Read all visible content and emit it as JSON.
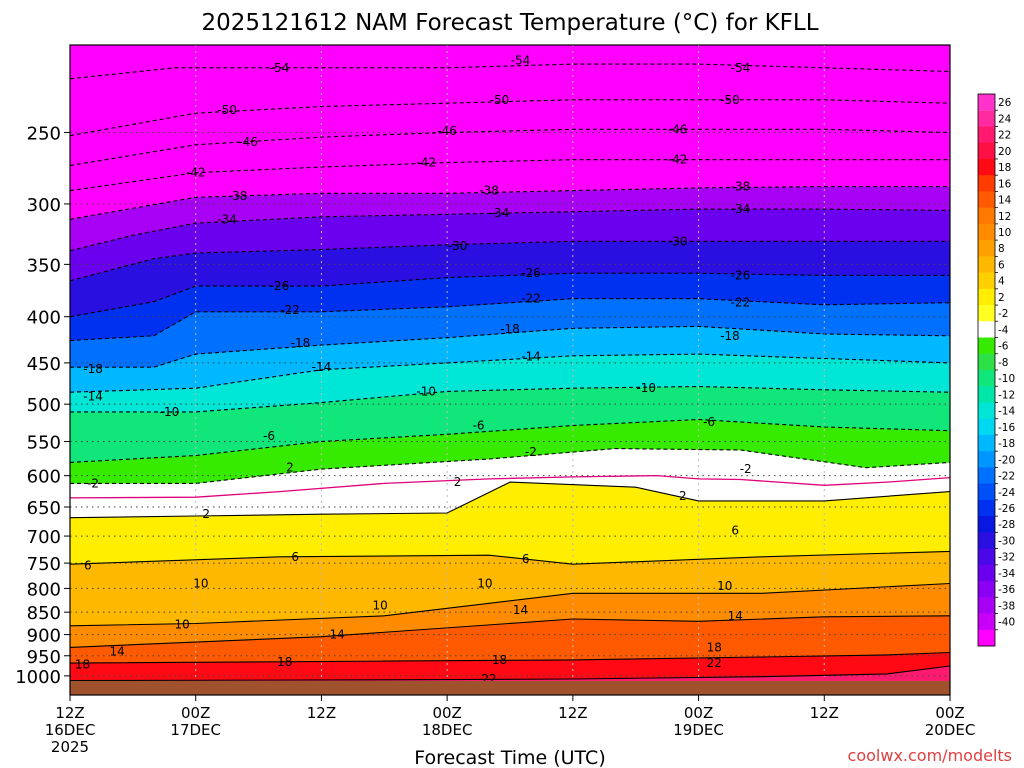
{
  "chart_data": {
    "type": "heatmap",
    "title": "2025121612 NAM Forecast Temperature (°C) for KFLL",
    "xlabel": "Forecast Time (UTC)",
    "ylabel": "",
    "credit": "coolwx.com/modelts",
    "y_axis": {
      "quantity": "pressure (hPa)",
      "direction": "inverted",
      "range": [
        1050,
        200
      ],
      "ticks": [
        250,
        300,
        350,
        400,
        450,
        500,
        550,
        600,
        650,
        700,
        750,
        800,
        850,
        900,
        950,
        1000
      ]
    },
    "x_axis": {
      "range_hours": [
        0,
        84
      ],
      "ticks": [
        {
          "hour": 0,
          "lines": [
            "12Z",
            "16DEC",
            "2025"
          ]
        },
        {
          "hour": 12,
          "lines": [
            "00Z",
            "17DEC"
          ]
        },
        {
          "hour": 24,
          "lines": [
            "12Z"
          ]
        },
        {
          "hour": 36,
          "lines": [
            "00Z",
            "18DEC"
          ]
        },
        {
          "hour": 48,
          "lines": [
            "12Z"
          ]
        },
        {
          "hour": 60,
          "lines": [
            "00Z",
            "19DEC"
          ]
        },
        {
          "hour": 72,
          "lines": [
            "12Z"
          ]
        },
        {
          "hour": 84,
          "lines": [
            "00Z",
            "20DEC"
          ]
        }
      ]
    },
    "colorbar": {
      "labels": [
        26,
        24,
        22,
        20,
        18,
        16,
        14,
        12,
        10,
        8,
        6,
        4,
        2,
        -2,
        -4,
        -6,
        -8,
        -10,
        -12,
        -14,
        -16,
        -18,
        -20,
        -22,
        -24,
        -26,
        -28,
        -30,
        -32,
        -34,
        -36,
        -38,
        -40
      ],
      "colors": [
        "#ff2aa0",
        "#ff1a70",
        "#ff1044",
        "#ff0a14",
        "#ff3c00",
        "#ff5a00",
        "#ff7800",
        "#ff8c00",
        "#ffa000",
        "#ffb800",
        "#ffd000",
        "#ffee00",
        "#ffff22",
        "#ffffff",
        "#36ea00",
        "#2ee048",
        "#10e67a",
        "#00e6a8",
        "#00e6d6",
        "#00d8f2",
        "#00b8ff",
        "#0096ff",
        "#0070ff",
        "#0050f8",
        "#0030f0",
        "#0818e0",
        "#2a10e0",
        "#4a08e8",
        "#6a00ee",
        "#8a00f2",
        "#a800f4",
        "#c800f8",
        "#ff00ff"
      ],
      "above_color": "#ff33cc"
    },
    "isotherm_levels": [
      22,
      18,
      14,
      10,
      6,
      2,
      -2,
      -6,
      -10,
      -14,
      -18,
      -22,
      -26,
      -30,
      -34,
      -38,
      -42,
      -46,
      -50,
      -54
    ],
    "isotherms": [
      {
        "level": 22,
        "points": [
          [
            0,
            1012
          ],
          [
            30,
            1010
          ],
          [
            48,
            1008
          ],
          [
            66,
            1002
          ],
          [
            78,
            995
          ],
          [
            84,
            975
          ]
        ]
      },
      {
        "level": 18,
        "points": [
          [
            0,
            968
          ],
          [
            30,
            963
          ],
          [
            48,
            960
          ],
          [
            66,
            953
          ],
          [
            78,
            948
          ],
          [
            84,
            942
          ]
        ]
      },
      {
        "level": 14,
        "points": [
          [
            0,
            930
          ],
          [
            24,
            905
          ],
          [
            48,
            865
          ],
          [
            60,
            870
          ],
          [
            72,
            860
          ],
          [
            84,
            858
          ]
        ]
      },
      {
        "level": 10,
        "points": [
          [
            0,
            880
          ],
          [
            12,
            875
          ],
          [
            30,
            858
          ],
          [
            48,
            810
          ],
          [
            66,
            810
          ],
          [
            84,
            790
          ]
        ]
      },
      {
        "level": 6,
        "points": [
          [
            0,
            752
          ],
          [
            20,
            738
          ],
          [
            40,
            735
          ],
          [
            48,
            752
          ],
          [
            66,
            738
          ],
          [
            84,
            728
          ]
        ]
      },
      {
        "level": 2,
        "points": [
          [
            0,
            668
          ],
          [
            12,
            665
          ],
          [
            24,
            662
          ],
          [
            36,
            660
          ],
          [
            42,
            610
          ],
          [
            54,
            618
          ],
          [
            60,
            640
          ],
          [
            72,
            640
          ],
          [
            84,
            625
          ]
        ]
      },
      {
        "level": -2,
        "points": [
          [
            0,
            612
          ],
          [
            12,
            612
          ],
          [
            24,
            590
          ],
          [
            40,
            575
          ],
          [
            52,
            560
          ],
          [
            64,
            562
          ],
          [
            76,
            588
          ],
          [
            84,
            580
          ]
        ]
      },
      {
        "level": -6,
        "points": [
          [
            0,
            580
          ],
          [
            12,
            570
          ],
          [
            24,
            550
          ],
          [
            36,
            540
          ],
          [
            48,
            528
          ],
          [
            60,
            520
          ],
          [
            72,
            530
          ],
          [
            84,
            535
          ]
        ]
      },
      {
        "level": -10,
        "points": [
          [
            0,
            510
          ],
          [
            12,
            510
          ],
          [
            24,
            498
          ],
          [
            36,
            484
          ],
          [
            48,
            480
          ],
          [
            60,
            478
          ],
          [
            72,
            482
          ],
          [
            84,
            485
          ]
        ]
      },
      {
        "level": -14,
        "points": [
          [
            0,
            485
          ],
          [
            12,
            480
          ],
          [
            24,
            458
          ],
          [
            36,
            450
          ],
          [
            48,
            442
          ],
          [
            60,
            440
          ],
          [
            72,
            445
          ],
          [
            84,
            450
          ]
        ]
      },
      {
        "level": -18,
        "points": [
          [
            0,
            455
          ],
          [
            8,
            455
          ],
          [
            12,
            440
          ],
          [
            24,
            430
          ],
          [
            36,
            422
          ],
          [
            48,
            412
          ],
          [
            60,
            410
          ],
          [
            72,
            418
          ],
          [
            84,
            420
          ]
        ]
      },
      {
        "level": -22,
        "points": [
          [
            0,
            425
          ],
          [
            8,
            420
          ],
          [
            12,
            395
          ],
          [
            24,
            395
          ],
          [
            36,
            390
          ],
          [
            48,
            382
          ],
          [
            60,
            382
          ],
          [
            72,
            388
          ],
          [
            84,
            386
          ]
        ]
      },
      {
        "level": -26,
        "points": [
          [
            0,
            400
          ],
          [
            8,
            385
          ],
          [
            12,
            370
          ],
          [
            24,
            370
          ],
          [
            36,
            362
          ],
          [
            48,
            358
          ],
          [
            60,
            358
          ],
          [
            72,
            360
          ],
          [
            84,
            360
          ]
        ]
      },
      {
        "level": -30,
        "points": [
          [
            0,
            365
          ],
          [
            8,
            345
          ],
          [
            12,
            340
          ],
          [
            24,
            337
          ],
          [
            36,
            333
          ],
          [
            48,
            330
          ],
          [
            60,
            330
          ],
          [
            72,
            330
          ],
          [
            84,
            330
          ]
        ]
      },
      {
        "level": -34,
        "points": [
          [
            0,
            338
          ],
          [
            6,
            325
          ],
          [
            12,
            315
          ],
          [
            24,
            310
          ],
          [
            36,
            308
          ],
          [
            48,
            306
          ],
          [
            60,
            304
          ],
          [
            72,
            304
          ],
          [
            84,
            305
          ]
        ]
      },
      {
        "level": -38,
        "points": [
          [
            0,
            312
          ],
          [
            12,
            295
          ],
          [
            24,
            292
          ],
          [
            36,
            292
          ],
          [
            48,
            290
          ],
          [
            60,
            288
          ],
          [
            72,
            287
          ],
          [
            84,
            287
          ]
        ]
      },
      {
        "level": -42,
        "points": [
          [
            0,
            290
          ],
          [
            12,
            277
          ],
          [
            24,
            273
          ],
          [
            36,
            270
          ],
          [
            48,
            268
          ],
          [
            60,
            268
          ],
          [
            72,
            268
          ],
          [
            84,
            268
          ]
        ]
      },
      {
        "level": -46,
        "points": [
          [
            0,
            272
          ],
          [
            12,
            258
          ],
          [
            24,
            253
          ],
          [
            36,
            250
          ],
          [
            48,
            248
          ],
          [
            60,
            248
          ],
          [
            72,
            248
          ],
          [
            84,
            250
          ]
        ]
      },
      {
        "level": -50,
        "points": [
          [
            0,
            252
          ],
          [
            12,
            238
          ],
          [
            24,
            234
          ],
          [
            36,
            232
          ],
          [
            48,
            230
          ],
          [
            60,
            230
          ],
          [
            72,
            230
          ],
          [
            84,
            232
          ]
        ]
      },
      {
        "level": -54,
        "points": [
          [
            0,
            218
          ],
          [
            10,
            212
          ],
          [
            24,
            212
          ],
          [
            36,
            212
          ],
          [
            48,
            210
          ],
          [
            60,
            210
          ],
          [
            72,
            212
          ],
          [
            84,
            214
          ]
        ]
      }
    ],
    "zero_isotherm": {
      "color": "#e0007a",
      "points": [
        [
          0,
          635
        ],
        [
          12,
          634
        ],
        [
          20,
          625
        ],
        [
          30,
          612
        ],
        [
          40,
          605
        ],
        [
          48,
          602
        ],
        [
          56,
          600
        ],
        [
          60,
          605
        ],
        [
          64,
          606
        ],
        [
          72,
          615
        ],
        [
          78,
          610
        ],
        [
          84,
          603
        ]
      ]
    },
    "contour_labels": [
      {
        "text": "-54",
        "x": 20,
        "p": 212
      },
      {
        "text": "-54",
        "x": 43,
        "p": 208
      },
      {
        "text": "-54",
        "x": 64,
        "p": 212
      },
      {
        "text": "-50",
        "x": 15,
        "p": 236
      },
      {
        "text": "-50",
        "x": 41,
        "p": 230
      },
      {
        "text": "-50",
        "x": 63,
        "p": 230
      },
      {
        "text": "-46",
        "x": 17,
        "p": 256
      },
      {
        "text": "-46",
        "x": 36,
        "p": 249
      },
      {
        "text": "-46",
        "x": 58,
        "p": 248
      },
      {
        "text": "-42",
        "x": 12,
        "p": 277
      },
      {
        "text": "-42",
        "x": 34,
        "p": 270
      },
      {
        "text": "-42",
        "x": 58,
        "p": 268
      },
      {
        "text": "-38",
        "x": 16,
        "p": 294
      },
      {
        "text": "-38",
        "x": 40,
        "p": 290
      },
      {
        "text": "-38",
        "x": 64,
        "p": 287
      },
      {
        "text": "-34",
        "x": 15,
        "p": 312
      },
      {
        "text": "-34",
        "x": 41,
        "p": 307
      },
      {
        "text": "-34",
        "x": 64,
        "p": 304
      },
      {
        "text": "-30",
        "x": 37,
        "p": 334
      },
      {
        "text": "-30",
        "x": 58,
        "p": 330
      },
      {
        "text": "-26",
        "x": 20,
        "p": 370
      },
      {
        "text": "-26",
        "x": 44,
        "p": 358
      },
      {
        "text": "-26",
        "x": 64,
        "p": 360
      },
      {
        "text": "-22",
        "x": 21,
        "p": 393
      },
      {
        "text": "-22",
        "x": 44,
        "p": 382
      },
      {
        "text": "-22",
        "x": 64,
        "p": 386
      },
      {
        "text": "-18",
        "x": 2.2,
        "p": 457
      },
      {
        "text": "-18",
        "x": 22,
        "p": 428
      },
      {
        "text": "-18",
        "x": 42,
        "p": 413
      },
      {
        "text": "-18",
        "x": 63,
        "p": 420
      },
      {
        "text": "-14",
        "x": 2.2,
        "p": 490
      },
      {
        "text": "-14",
        "x": 24,
        "p": 455
      },
      {
        "text": "-14",
        "x": 44,
        "p": 443
      },
      {
        "text": "-10",
        "x": 9.5,
        "p": 510
      },
      {
        "text": "-10",
        "x": 34,
        "p": 484
      },
      {
        "text": "-10",
        "x": 55,
        "p": 480
      },
      {
        "text": "-6",
        "x": 19,
        "p": 542
      },
      {
        "text": "-6",
        "x": 39,
        "p": 528
      },
      {
        "text": "-6",
        "x": 61,
        "p": 523
      },
      {
        "text": "-2",
        "x": 2.2,
        "p": 612
      },
      {
        "text": "-2",
        "x": 44,
        "p": 565
      },
      {
        "text": "-2",
        "x": 64.5,
        "p": 590
      },
      {
        "text": "2",
        "x": 21,
        "p": 588
      },
      {
        "text": "2",
        "x": 37,
        "p": 610
      },
      {
        "text": "2",
        "x": 58.5,
        "p": 632
      },
      {
        "text": "2",
        "x": 13,
        "p": 662
      },
      {
        "text": "6",
        "x": 1.7,
        "p": 755
      },
      {
        "text": "6",
        "x": 21.5,
        "p": 738
      },
      {
        "text": "6",
        "x": 43.5,
        "p": 742
      },
      {
        "text": "6",
        "x": 63.5,
        "p": 690
      },
      {
        "text": "10",
        "x": 12.5,
        "p": 790
      },
      {
        "text": "10",
        "x": 10.7,
        "p": 877
      },
      {
        "text": "10",
        "x": 29.6,
        "p": 836
      },
      {
        "text": "10",
        "x": 39.6,
        "p": 790
      },
      {
        "text": "10",
        "x": 62.5,
        "p": 795
      },
      {
        "text": "14",
        "x": 4.5,
        "p": 940
      },
      {
        "text": "14",
        "x": 25.5,
        "p": 900
      },
      {
        "text": "14",
        "x": 43,
        "p": 845
      },
      {
        "text": "14",
        "x": 63.5,
        "p": 858
      },
      {
        "text": "18",
        "x": 1.2,
        "p": 972
      },
      {
        "text": "18",
        "x": 20.5,
        "p": 965
      },
      {
        "text": "18",
        "x": 41,
        "p": 960
      },
      {
        "text": "18",
        "x": 61.5,
        "p": 930
      },
      {
        "text": "22",
        "x": 40,
        "p": 1008
      },
      {
        "text": "22",
        "x": 61.5,
        "p": 968
      }
    ],
    "ground_color": "#a0522d"
  }
}
